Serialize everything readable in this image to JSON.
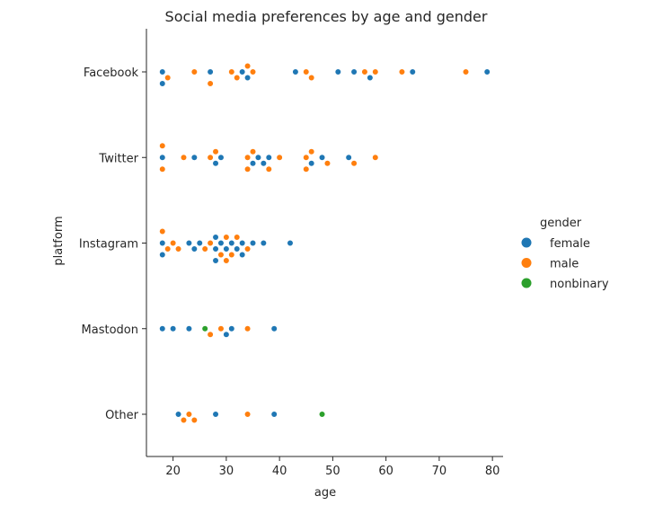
{
  "chart_data": {
    "type": "scatter",
    "subtype": "swarm",
    "title": "Social media preferences by age and gender",
    "xlabel": "age",
    "ylabel": "platform",
    "xlim": [
      15,
      82
    ],
    "xticks": [
      20,
      30,
      40,
      50,
      60,
      70,
      80
    ],
    "grid": false,
    "categories": [
      "Facebook",
      "Twitter",
      "Instagram",
      "Mastodon",
      "Other"
    ],
    "legend": {
      "title": "gender",
      "placement": "right",
      "entries": [
        {
          "name": "female",
          "color": "#1f77b4"
        },
        {
          "name": "male",
          "color": "#ff7f0e"
        },
        {
          "name": "nonbinary",
          "color": "#2ca02c"
        }
      ]
    },
    "series": [
      {
        "name": "female",
        "color": "#1f77b4",
        "points": {
          "Facebook": [
            18,
            18,
            27,
            33,
            34,
            43,
            51,
            54,
            57,
            65,
            79
          ],
          "Twitter": [
            18,
            24,
            28,
            29,
            35,
            36,
            37,
            38,
            46,
            48,
            53
          ],
          "Instagram": [
            18,
            18,
            23,
            24,
            25,
            28,
            28,
            28,
            29,
            30,
            31,
            32,
            33,
            33,
            35,
            37,
            42
          ],
          "Mastodon": [
            18,
            20,
            23,
            30,
            31,
            39
          ],
          "Other": [
            21,
            28,
            39
          ]
        }
      },
      {
        "name": "male",
        "color": "#ff7f0e",
        "points": {
          "Facebook": [
            19,
            24,
            27,
            31,
            32,
            34,
            35,
            45,
            46,
            56,
            58,
            63,
            75
          ],
          "Twitter": [
            18,
            18,
            22,
            27,
            28,
            34,
            34,
            35,
            38,
            40,
            45,
            45,
            46,
            49,
            54,
            58
          ],
          "Instagram": [
            18,
            19,
            20,
            21,
            26,
            27,
            29,
            30,
            30,
            31,
            32,
            34
          ],
          "Mastodon": [
            27,
            29,
            34
          ],
          "Other": [
            22,
            23,
            24,
            34
          ]
        }
      },
      {
        "name": "nonbinary",
        "color": "#2ca02c",
        "points": {
          "Mastodon": [
            26
          ],
          "Other": [
            48
          ]
        }
      }
    ]
  }
}
